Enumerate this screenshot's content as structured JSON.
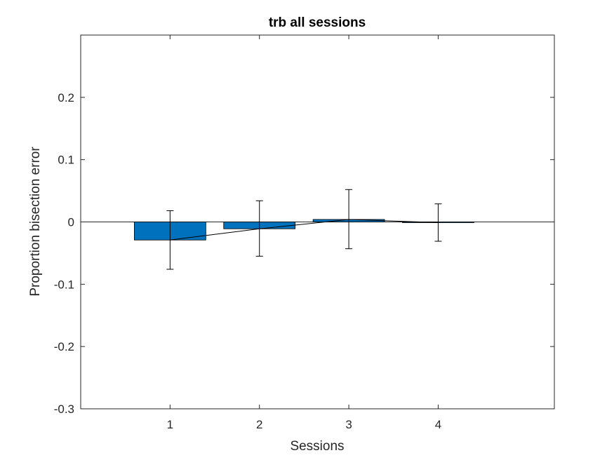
{
  "chart_data": {
    "type": "bar",
    "title": "trb all sessions",
    "xlabel": "Sessions",
    "ylabel": "Proportion bisection error",
    "categories": [
      "1",
      "2",
      "3",
      "4"
    ],
    "x": [
      1,
      2,
      3,
      4
    ],
    "values": [
      -0.029,
      -0.011,
      0.004,
      -0.001
    ],
    "error_upper": [
      0.018,
      0.034,
      0.052,
      0.029
    ],
    "error_lower": [
      -0.076,
      -0.055,
      -0.043,
      -0.031
    ],
    "xlim": [
      0,
      5.3
    ],
    "ylim": [
      -0.3,
      0.3
    ],
    "yticks": [
      -0.3,
      -0.2,
      -0.1,
      0,
      0.1,
      0.2
    ],
    "ytick_labels": [
      "-0.3",
      "-0.2",
      "-0.1",
      "0",
      "0.1",
      "0.2"
    ],
    "xticks": [
      1,
      2,
      3,
      4
    ],
    "xtick_labels": [
      "1",
      "2",
      "3",
      "4"
    ],
    "bar_color": "#0072BD",
    "line_color": "#000000",
    "zero_line": true,
    "grid": false,
    "legend": "none"
  }
}
